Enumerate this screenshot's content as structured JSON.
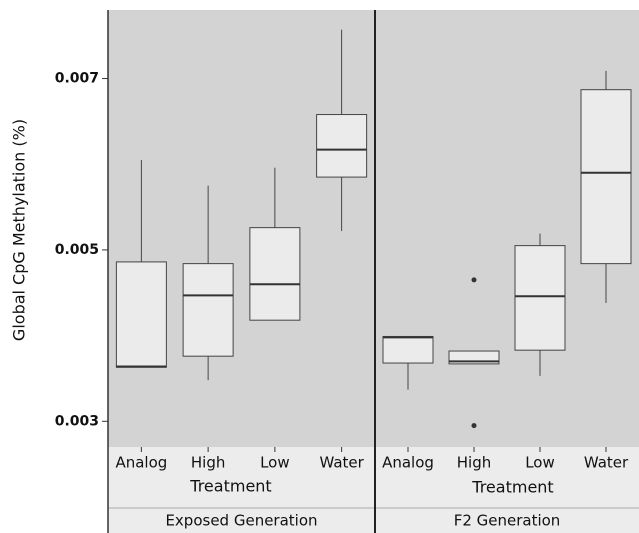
{
  "chart_data": {
    "type": "box",
    "ylabel": "Global CpG Methylation (%)",
    "xlabel": "Treatment",
    "ylim": [
      0.0027,
      0.0078
    ],
    "yticks": [
      0.003,
      0.005,
      0.007
    ],
    "facets": [
      {
        "name": "Exposed Generation",
        "categories": [
          "Analog",
          "High",
          "Low",
          "Water"
        ],
        "boxes": [
          {
            "min": 0.00363,
            "q1": 0.00363,
            "median": 0.00364,
            "q3": 0.00486,
            "max": 0.00605,
            "outliers": []
          },
          {
            "min": 0.00348,
            "q1": 0.00376,
            "median": 0.00447,
            "q3": 0.00484,
            "max": 0.00575,
            "outliers": []
          },
          {
            "min": 0.00418,
            "q1": 0.00418,
            "median": 0.0046,
            "q3": 0.00526,
            "max": 0.00596,
            "outliers": []
          },
          {
            "min": 0.00522,
            "q1": 0.00585,
            "median": 0.00617,
            "q3": 0.00658,
            "max": 0.00757,
            "outliers": []
          }
        ]
      },
      {
        "name": "F2 Generation",
        "categories": [
          "Analog",
          "High",
          "Low",
          "Water"
        ],
        "boxes": [
          {
            "min": 0.00337,
            "q1": 0.00368,
            "median": 0.00398,
            "q3": 0.00399,
            "max": 0.00399,
            "outliers": []
          },
          {
            "min": 0.00367,
            "q1": 0.00367,
            "median": 0.0037,
            "q3": 0.00382,
            "max": 0.00382,
            "outliers": [
              0.00465,
              0.00295
            ]
          },
          {
            "min": 0.00353,
            "q1": 0.00383,
            "median": 0.00446,
            "q3": 0.00505,
            "max": 0.00519,
            "outliers": []
          },
          {
            "min": 0.00438,
            "q1": 0.00484,
            "median": 0.0059,
            "q3": 0.00687,
            "max": 0.00709,
            "outliers": []
          }
        ]
      }
    ]
  }
}
